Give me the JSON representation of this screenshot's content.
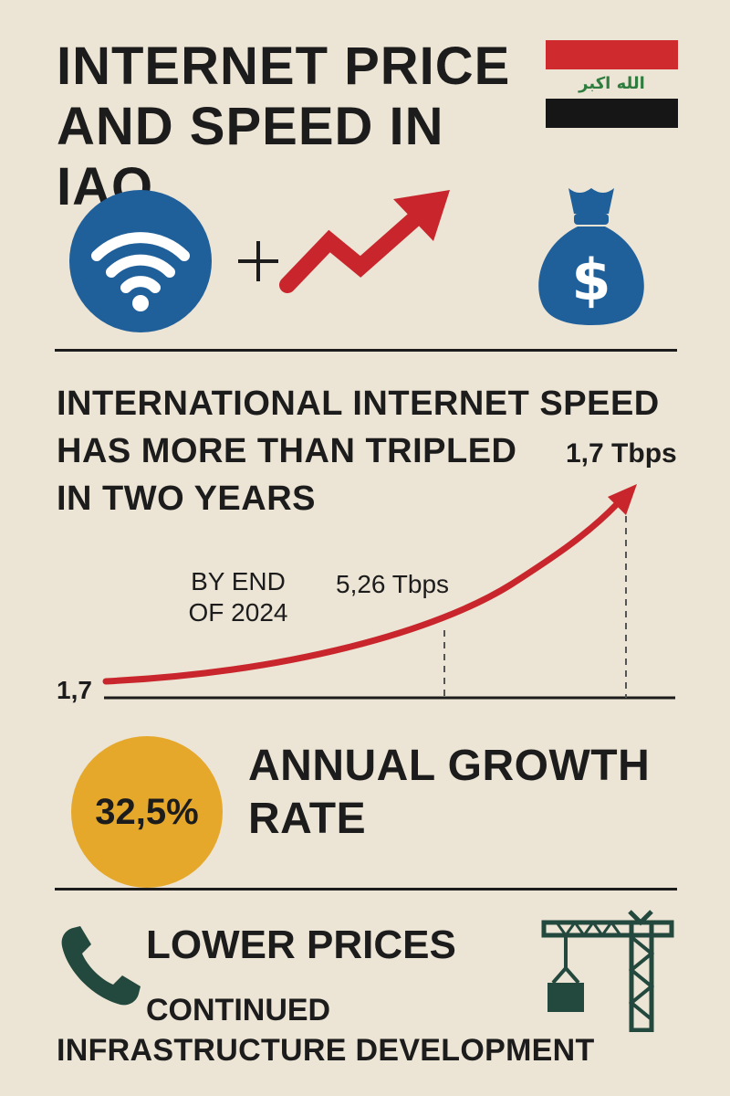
{
  "title": {
    "line1": "INTERNET PRICE",
    "line2": "AND SPEED IN IAQ"
  },
  "flag": {
    "takbir": "الله اكبر",
    "colors": {
      "red": "#cf2a2e",
      "white": "#ece4d4",
      "black": "#161616",
      "green": "#2e7d3e"
    }
  },
  "icons": {
    "wifi": "wifi-icon",
    "plus": "plus-icon",
    "trend": "trend-up-arrow-icon",
    "money": "money-bag-icon",
    "phone": "phone-icon",
    "crane": "construction-crane-icon"
  },
  "headline": {
    "line1": "INTERNATIONAL INTERNET SPEED",
    "line2": "HAS MORE THAN TRIPLED",
    "line3": "IN TWO YEARS"
  },
  "chart_data": {
    "type": "line",
    "labels": {
      "end_value": "1,7 Tbps",
      "by_end_line1": "BY END",
      "by_end_line2": "OF 2024",
      "mid_value": "5,26 Tbps",
      "start_value": "1,7"
    },
    "colors": {
      "curve": "#c8262c",
      "axis": "#1c1c1c",
      "guides": "#555555"
    }
  },
  "growth": {
    "value": "32,5%",
    "label_line1": "ANNUAL GROWTH",
    "label_line2": "RATE",
    "circle_color": "#e5a82b"
  },
  "footer": {
    "lower_prices": "LOWER PRICES",
    "continued": "CONTINUED",
    "infrastructure": "INFRASTRUCTURE DEVELOPMENT"
  },
  "colors": {
    "background": "#ece4d4",
    "text": "#1c1c1c",
    "blue": "#1f5f9a",
    "red": "#c8262c",
    "dark_green": "#23483d"
  }
}
